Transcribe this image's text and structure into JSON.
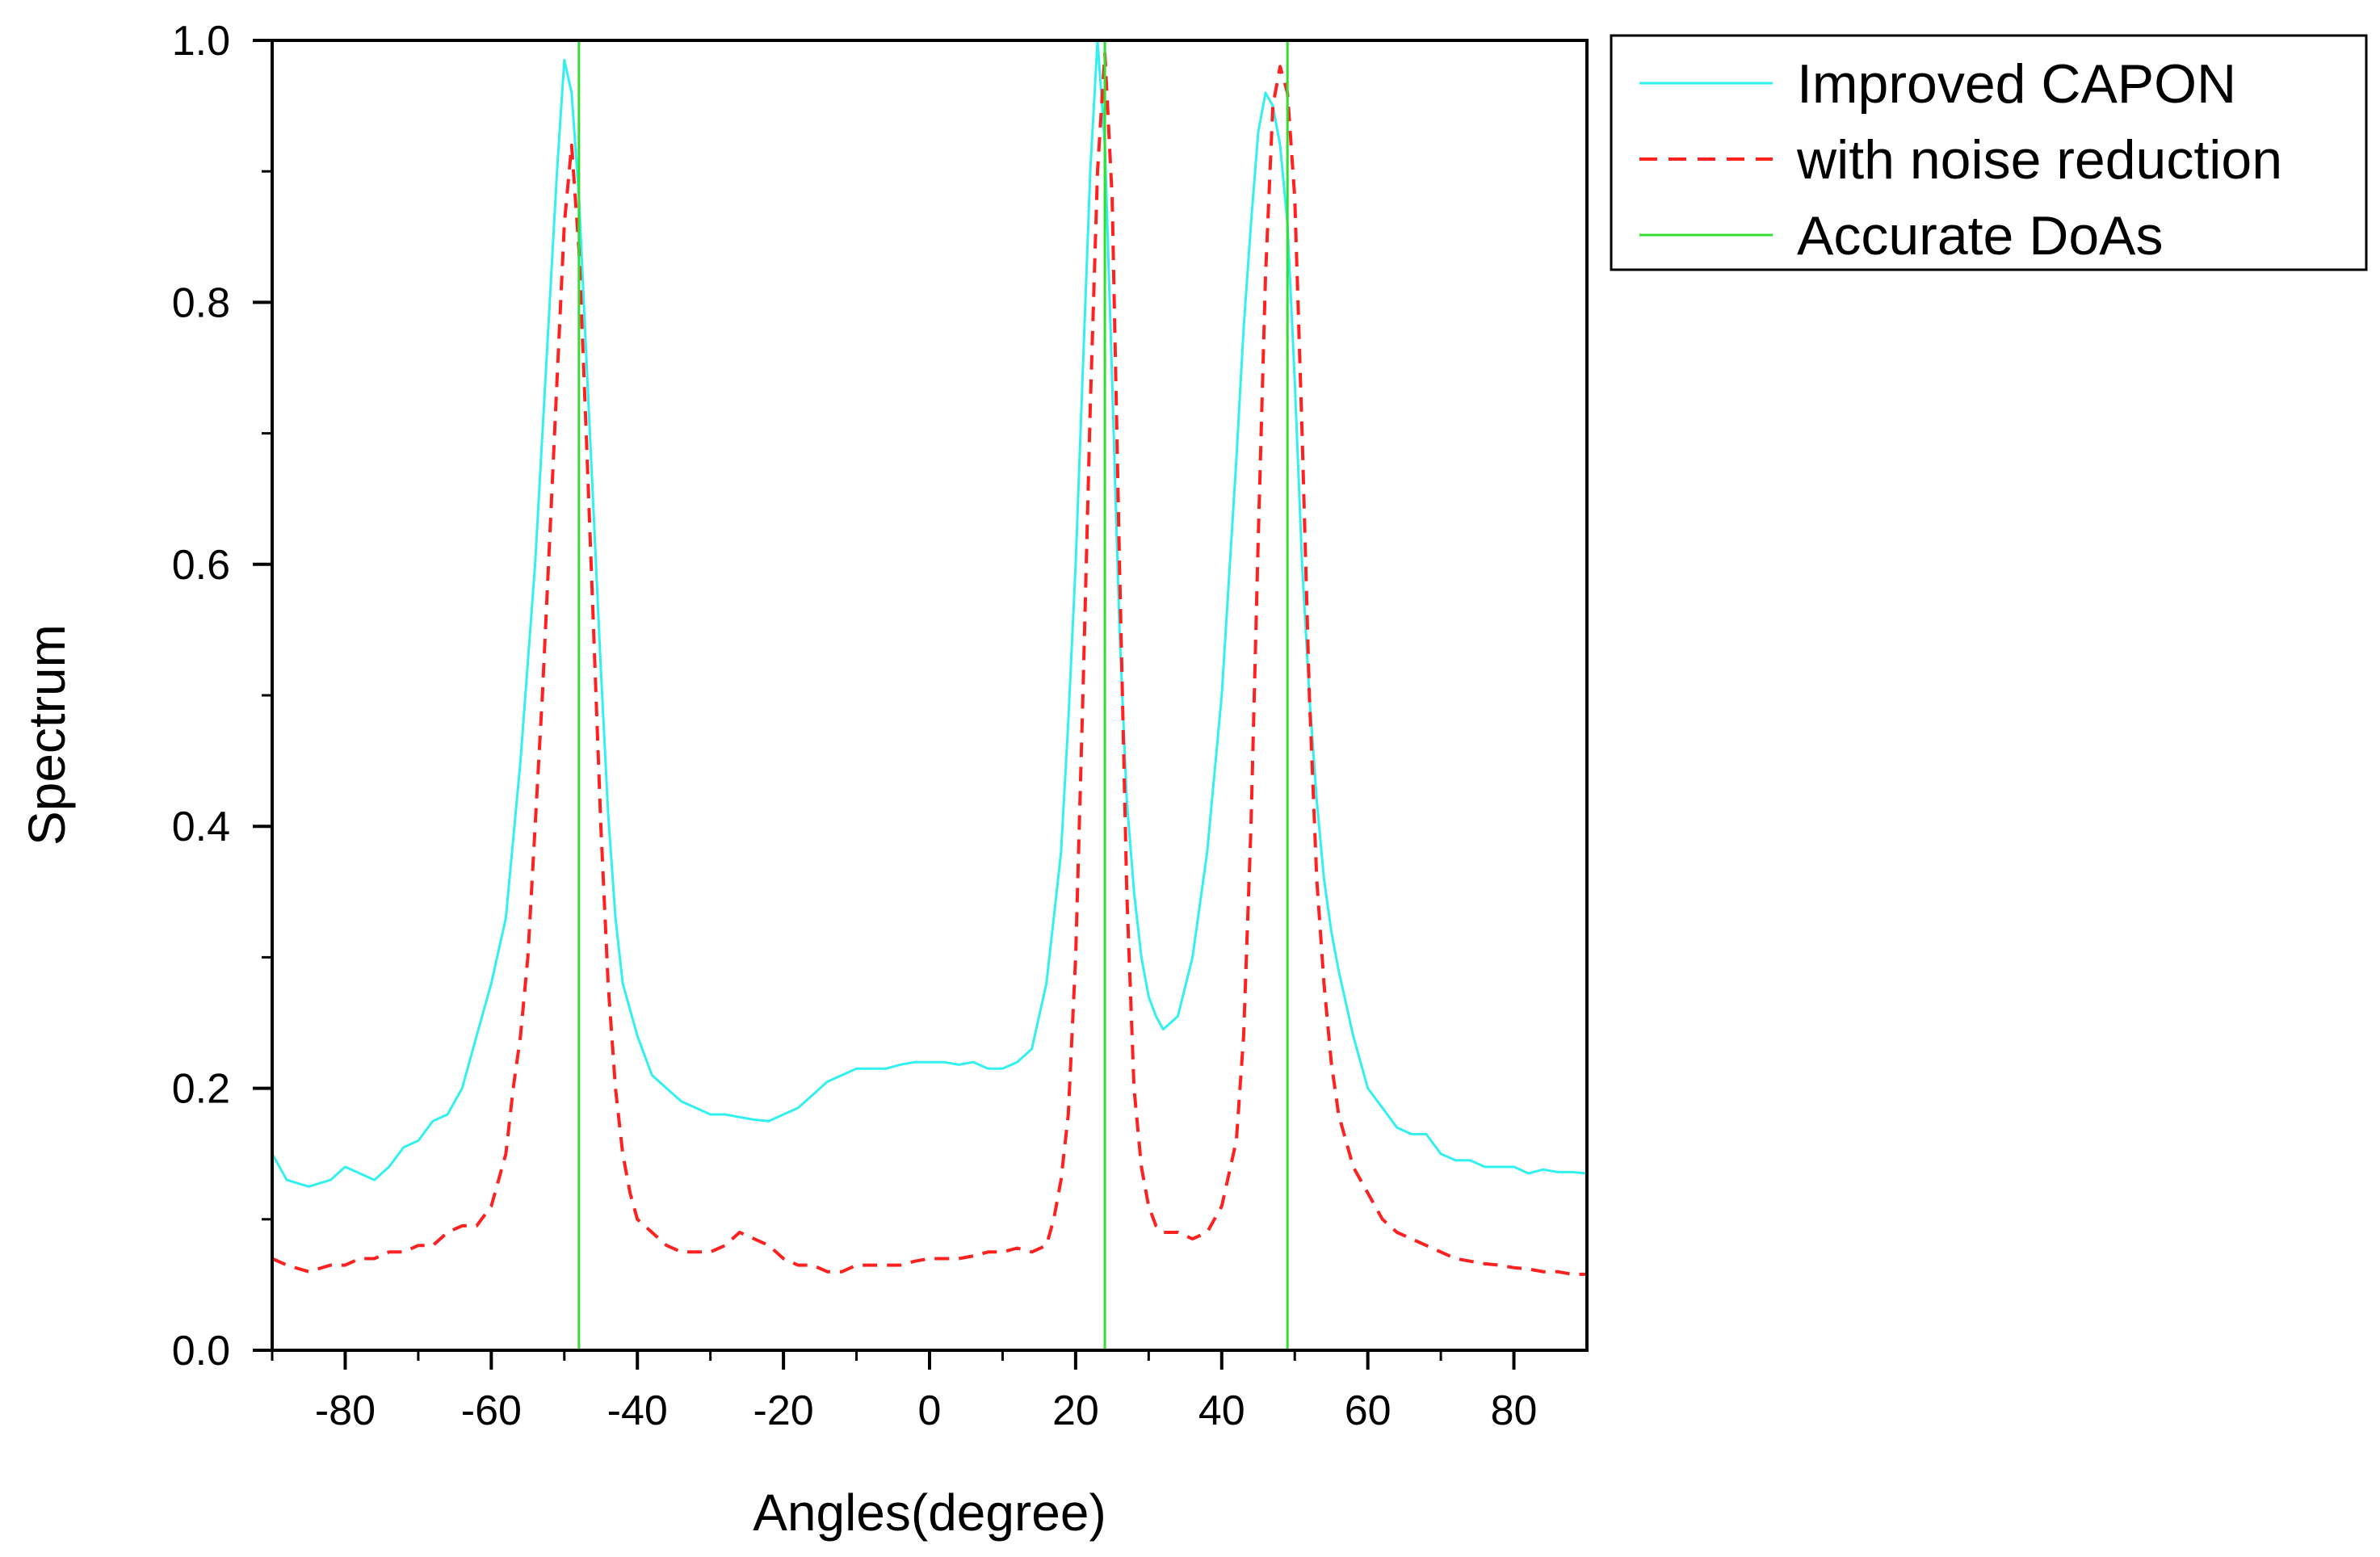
{
  "chart_data": {
    "type": "line",
    "xlabel": "Angles(degree)",
    "ylabel": "Spectrum",
    "xlim": [
      -90,
      90
    ],
    "ylim": [
      0,
      1.0
    ],
    "xticks": [
      -80,
      -60,
      -40,
      -20,
      0,
      20,
      40,
      60,
      80
    ],
    "xtick_labels": [
      "-80",
      "-60",
      "-40",
      "-20",
      "0",
      "20",
      "40",
      "60",
      "80"
    ],
    "yticks": [
      0,
      0.2,
      0.4,
      0.6,
      0.8,
      1.0
    ],
    "ytick_labels": [
      "0.0",
      "0.2",
      "0.4",
      "0.6",
      "0.8",
      "1.0"
    ],
    "legend_position": "outside-top-right",
    "series": [
      {
        "name": "Improved CAPON",
        "color": "#33f0f0",
        "style": "solid",
        "x": [
          -90,
          -88,
          -85,
          -82,
          -80,
          -78,
          -76,
          -74,
          -72,
          -70,
          -68,
          -66,
          -64,
          -62,
          -60,
          -58,
          -56,
          -54,
          -52,
          -51,
          -50,
          -49,
          -48,
          -47,
          -46,
          -45,
          -44,
          -43,
          -42,
          -41,
          -40,
          -38,
          -36,
          -34,
          -32,
          -30,
          -28,
          -26,
          -24,
          -22,
          -20,
          -18,
          -16,
          -14,
          -12,
          -10,
          -8,
          -6,
          -4,
          -2,
          0,
          2,
          4,
          6,
          8,
          10,
          12,
          14,
          16,
          17,
          18,
          19,
          20,
          21,
          22,
          23,
          24,
          25,
          26,
          27,
          28,
          29,
          30,
          31,
          32,
          34,
          36,
          38,
          40,
          42,
          43,
          44,
          45,
          46,
          47,
          48,
          49,
          50,
          51,
          52,
          53,
          54,
          55,
          56,
          58,
          60,
          62,
          64,
          66,
          68,
          70,
          72,
          74,
          76,
          78,
          80,
          82,
          84,
          86,
          88,
          90
        ],
        "values": [
          0.15,
          0.13,
          0.125,
          0.13,
          0.14,
          0.135,
          0.13,
          0.14,
          0.155,
          0.16,
          0.175,
          0.18,
          0.2,
          0.24,
          0.28,
          0.33,
          0.45,
          0.6,
          0.8,
          0.9,
          0.985,
          0.96,
          0.88,
          0.76,
          0.64,
          0.52,
          0.41,
          0.33,
          0.28,
          0.26,
          0.24,
          0.21,
          0.2,
          0.19,
          0.185,
          0.18,
          0.18,
          0.178,
          0.176,
          0.175,
          0.18,
          0.185,
          0.195,
          0.205,
          0.21,
          0.215,
          0.215,
          0.215,
          0.218,
          0.22,
          0.22,
          0.22,
          0.218,
          0.22,
          0.215,
          0.215,
          0.22,
          0.23,
          0.28,
          0.33,
          0.38,
          0.48,
          0.6,
          0.75,
          0.9,
          1.0,
          0.92,
          0.74,
          0.55,
          0.42,
          0.35,
          0.3,
          0.27,
          0.255,
          0.245,
          0.255,
          0.3,
          0.38,
          0.5,
          0.68,
          0.78,
          0.86,
          0.93,
          0.96,
          0.95,
          0.92,
          0.86,
          0.74,
          0.6,
          0.5,
          0.42,
          0.36,
          0.32,
          0.29,
          0.24,
          0.2,
          0.185,
          0.17,
          0.165,
          0.165,
          0.15,
          0.145,
          0.145,
          0.14,
          0.14,
          0.14,
          0.135,
          0.138,
          0.136,
          0.136,
          0.135
        ]
      },
      {
        "name": "with noise reduction",
        "color": "#ff2020",
        "style": "dashed",
        "x": [
          -90,
          -88,
          -85,
          -82,
          -80,
          -78,
          -76,
          -74,
          -72,
          -70,
          -68,
          -66,
          -64,
          -62,
          -60,
          -58,
          -57,
          -56,
          -55,
          -54,
          -53,
          -52,
          -51,
          -50,
          -49,
          -48,
          -47,
          -46,
          -45,
          -44,
          -43,
          -42,
          -41,
          -40,
          -38,
          -36,
          -34,
          -32,
          -30,
          -28,
          -26,
          -24,
          -22,
          -20,
          -18,
          -16,
          -14,
          -12,
          -10,
          -8,
          -6,
          -4,
          -2,
          0,
          2,
          4,
          6,
          8,
          10,
          12,
          14,
          16,
          17,
          18,
          19,
          20,
          21,
          22,
          23,
          24,
          25,
          26,
          27,
          28,
          29,
          30,
          31,
          32,
          34,
          36,
          38,
          40,
          42,
          43,
          44,
          45,
          46,
          47,
          48,
          49,
          50,
          51,
          52,
          53,
          54,
          55,
          56,
          58,
          60,
          62,
          64,
          66,
          68,
          70,
          72,
          74,
          76,
          78,
          80,
          82,
          84,
          86,
          88,
          90
        ],
        "values": [
          0.07,
          0.065,
          0.06,
          0.065,
          0.065,
          0.07,
          0.07,
          0.075,
          0.075,
          0.08,
          0.08,
          0.09,
          0.095,
          0.095,
          0.11,
          0.15,
          0.2,
          0.24,
          0.3,
          0.4,
          0.5,
          0.62,
          0.74,
          0.86,
          0.92,
          0.84,
          0.7,
          0.55,
          0.4,
          0.28,
          0.2,
          0.15,
          0.12,
          0.1,
          0.09,
          0.08,
          0.075,
          0.075,
          0.075,
          0.08,
          0.09,
          0.085,
          0.08,
          0.07,
          0.065,
          0.065,
          0.06,
          0.06,
          0.065,
          0.065,
          0.065,
          0.065,
          0.068,
          0.07,
          0.07,
          0.07,
          0.072,
          0.075,
          0.075,
          0.078,
          0.075,
          0.08,
          0.1,
          0.13,
          0.18,
          0.3,
          0.5,
          0.72,
          0.9,
          0.99,
          0.88,
          0.6,
          0.35,
          0.2,
          0.14,
          0.11,
          0.095,
          0.09,
          0.09,
          0.085,
          0.09,
          0.11,
          0.16,
          0.24,
          0.4,
          0.62,
          0.82,
          0.95,
          0.98,
          0.96,
          0.88,
          0.7,
          0.5,
          0.36,
          0.28,
          0.22,
          0.18,
          0.14,
          0.12,
          0.1,
          0.09,
          0.085,
          0.08,
          0.075,
          0.07,
          0.068,
          0.066,
          0.065,
          0.063,
          0.062,
          0.06,
          0.06,
          0.058,
          0.058
        ]
      },
      {
        "name": "Accurate DoAs",
        "color": "#33dd33",
        "style": "solid",
        "vertical_lines_x": [
          -48,
          24,
          49
        ]
      }
    ]
  }
}
